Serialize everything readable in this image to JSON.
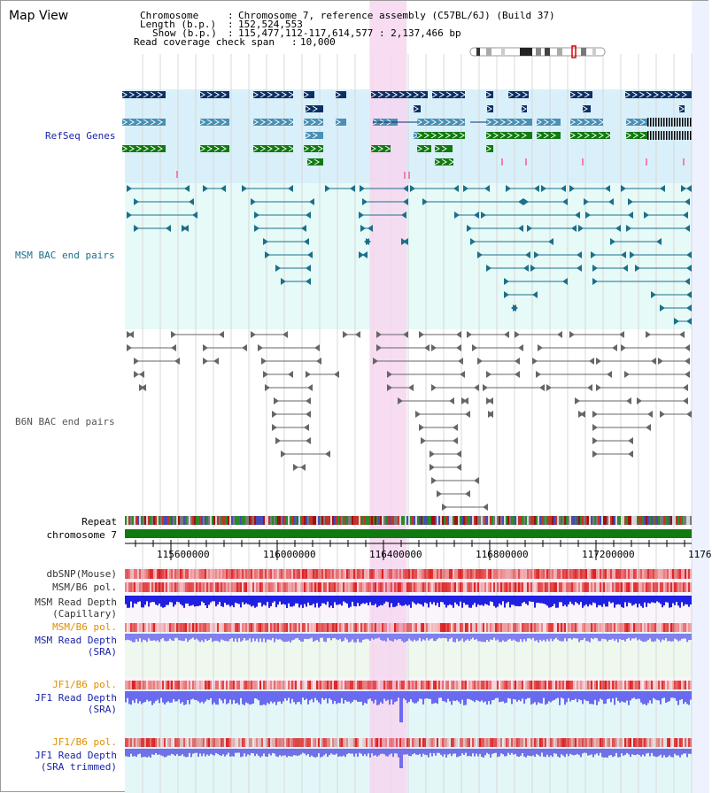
{
  "view_title": "Map View",
  "info": {
    "chromosome_label": "Chromosome",
    "chromosome_value": "Chromosome 7, reference assembly (C57BL/6J) (Build 37)",
    "length_label": "Length (b.p.)",
    "length_value": "152,524,553",
    "show_label": "Show (b.p.)",
    "show_value": "115,477,112-117,614,577 : 2,137,466 bp",
    "coverage_label": "Read coverage check span",
    "coverage_value": "10,000"
  },
  "tracks": {
    "refseq": "RefSeq Genes",
    "msm_bac": "MSM BAC end pairs",
    "b6n_bac": "B6N BAC end pairs",
    "repeat": "Repeat",
    "chromosome": "chromosome 7",
    "dbsnp": "dbSNP(Mouse)",
    "msm_b6_pol_1": "MSM/B6 pol.",
    "msm_depth_cap_1": "MSM Read Depth",
    "msm_depth_cap_2": "(Capillary)",
    "msm_b6_pol_2": "MSM/B6 pol.",
    "msm_depth_sra_1": "MSM Read Depth",
    "msm_depth_sra_2": "(SRA)",
    "jf1_b6_pol_1": "JF1/B6 pol.",
    "jf1_depth_sra_1": "JF1 Read Depth",
    "jf1_depth_sra_2": "(SRA)",
    "jf1_b6_pol_2": "JF1/B6 pol.",
    "jf1_depth_trim_1": "JF1 Read Depth",
    "jf1_depth_trim_2": "(SRA trimmed)"
  },
  "axis": {
    "range": [
      115477112,
      117614577
    ],
    "tick_labels": [
      "115600000",
      "116000000",
      "116400000",
      "116800000",
      "117200000",
      "1176"
    ]
  },
  "highlight": {
    "range_bp": [
      116400000,
      116540000
    ]
  },
  "colors": {
    "refseq_bg": "#d9f0fa",
    "bac_bg": "#e6faf8",
    "highlight": "#f6d6f0",
    "navy": "#0d2f66",
    "steel": "#4a8fb4",
    "green": "#117a11",
    "teal": "#1c6f8a",
    "gray": "#666666",
    "label_blue": "#1a23a8",
    "label_teal": "#1c6f8a",
    "label_orange": "#e08e00"
  }
}
